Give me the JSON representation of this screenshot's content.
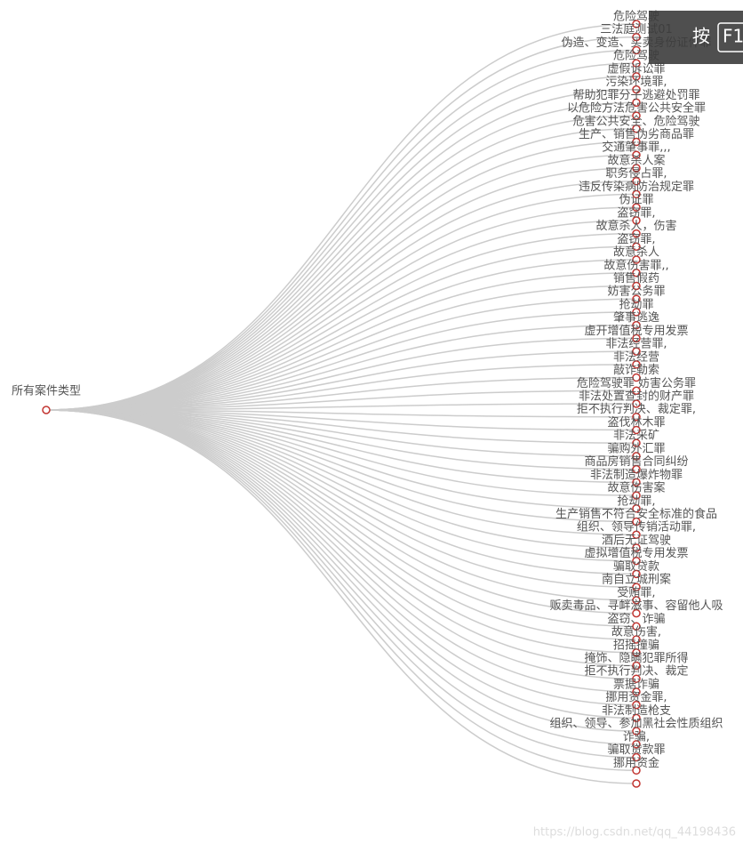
{
  "tree": {
    "root": "所有案件类型",
    "leaves": [
      "危险驾驶",
      "三法庭测试01",
      "伪造、变造、买卖身份证件罪",
      "危险驾驶",
      "虚假诉讼罪",
      "污染环境罪,",
      "帮助犯罪分子逃避处罚罪",
      "以危险方法危害公共安全罪",
      "危害公共安全、危险驾驶",
      "生产、销售伪劣商品罪",
      "交通肇事罪,,,",
      "故意杀人案",
      "职务侵占罪,",
      "违反传染病防治规定罪",
      "伪证罪",
      "盗窃罪,",
      "故意杀人，伤害",
      "盗窃罪,",
      "故意杀人",
      "故意伤害罪,,",
      "销售假药",
      "妨害公务罪",
      "抢劫罪",
      "肇事逃逸",
      "虚开增值税专用发票",
      "非法经营罪,",
      "非法经营",
      "敲诈勒索",
      "危险驾驶罪 妨害公务罪",
      "非法处置查封的财产罪",
      "拒不执行判决、裁定罪,",
      "盗伐林木罪",
      "非法采矿",
      "骗购外汇罪",
      "商品房销售合同纠纷",
      "非法制造爆炸物罪",
      "故意伤害案",
      "抢劫罪,",
      "生产销售不符合安全标准的食品",
      "组织、领导传销活动罪,",
      "酒后无证驾驶",
      "虚拟增值税专用发票",
      "骗取贷款",
      "南自立城刑案",
      "受贿罪,",
      "贩卖毒品、寻衅滋事、容留他人吸",
      "盗窃、诈骗",
      "故意伤害,",
      "招摇撞骗",
      "掩饰、隐瞒犯罪所得",
      "拒不执行判决、裁定",
      "票据诈骗",
      "挪用资金罪,",
      "非法制造枪支",
      "组织、领导、参加黑社会性质组织",
      "诈骗,",
      "骗取贷款罪",
      "挪用资金",
      null
    ]
  },
  "overlay": {
    "key_label": "按",
    "key": "F1"
  },
  "watermark": "https://blog.csdn.net/qq_44198436"
}
